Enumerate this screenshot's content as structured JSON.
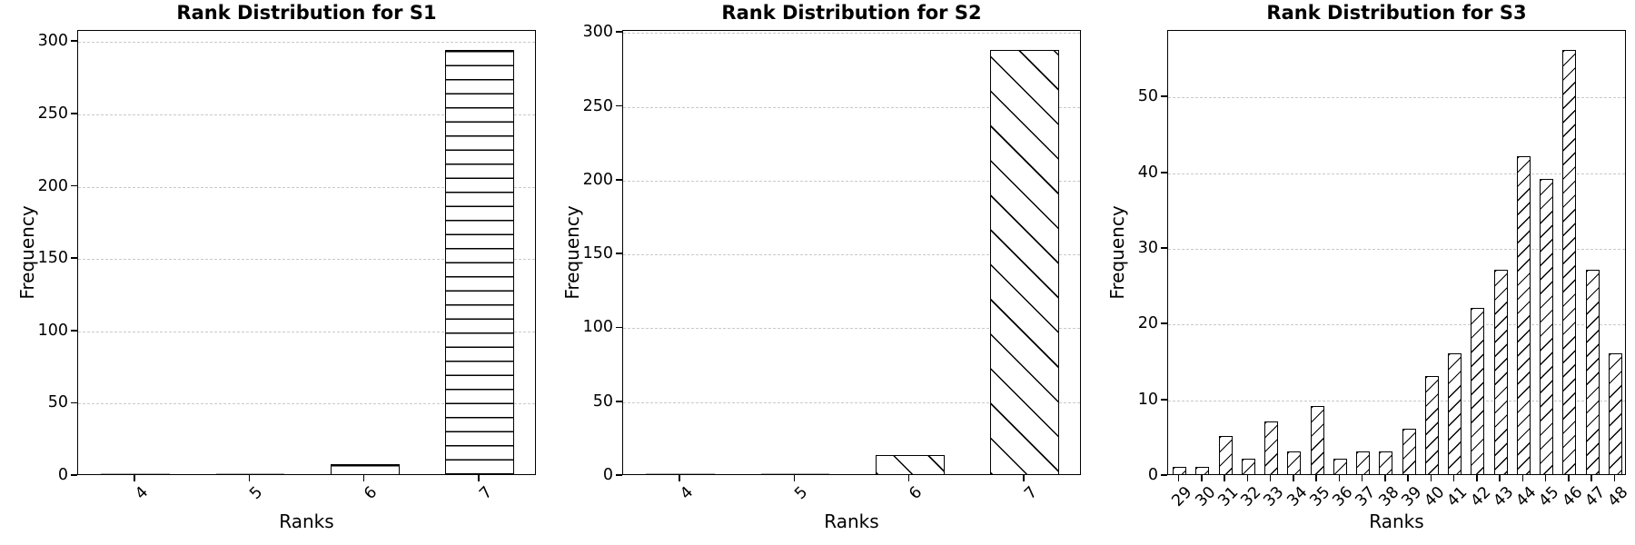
{
  "figure": {
    "background": "#ffffff",
    "text_color": "#000000",
    "grid_color": "#c9c9c9",
    "spine_color": "#000000",
    "bar_fill": "#ffffff",
    "bar_edge": "#000000"
  },
  "chart_data": [
    {
      "type": "bar",
      "title": "Rank Distribution for S1",
      "xlabel": "Ranks",
      "ylabel": "Frequency",
      "categories": [
        "4",
        "5",
        "6",
        "7"
      ],
      "values": [
        0,
        0,
        7,
        293
      ],
      "yticks": [
        0,
        50,
        100,
        150,
        200,
        250,
        300
      ],
      "ylim": [
        0,
        307.65
      ],
      "hatch": "-",
      "grid": "dashed-horizontal",
      "xtick_rotation": 45,
      "legend": "none"
    },
    {
      "type": "bar",
      "title": "Rank Distribution for S2",
      "xlabel": "Ranks",
      "ylabel": "Frequency",
      "categories": [
        "4",
        "5",
        "6",
        "7"
      ],
      "values": [
        0,
        0,
        13,
        287
      ],
      "yticks": [
        0,
        50,
        100,
        150,
        200,
        250,
        300
      ],
      "ylim": [
        0,
        301.35
      ],
      "hatch": "\\",
      "grid": "dashed-horizontal",
      "xtick_rotation": 45,
      "legend": "none"
    },
    {
      "type": "bar",
      "title": "Rank Distribution for S3",
      "xlabel": "Ranks",
      "ylabel": "Frequency",
      "categories": [
        "29",
        "30",
        "31",
        "32",
        "33",
        "34",
        "35",
        "36",
        "37",
        "38",
        "39",
        "40",
        "41",
        "42",
        "43",
        "44",
        "45",
        "46",
        "47",
        "48"
      ],
      "values": [
        1,
        1,
        5,
        2,
        7,
        3,
        9,
        2,
        3,
        3,
        6,
        13,
        16,
        22,
        27,
        42,
        39,
        56,
        27,
        16
      ],
      "yticks": [
        0,
        10,
        20,
        30,
        40,
        50
      ],
      "ylim": [
        0,
        58.8
      ],
      "hatch": "/",
      "grid": "dashed-horizontal",
      "xtick_rotation": 45,
      "legend": "none"
    }
  ]
}
